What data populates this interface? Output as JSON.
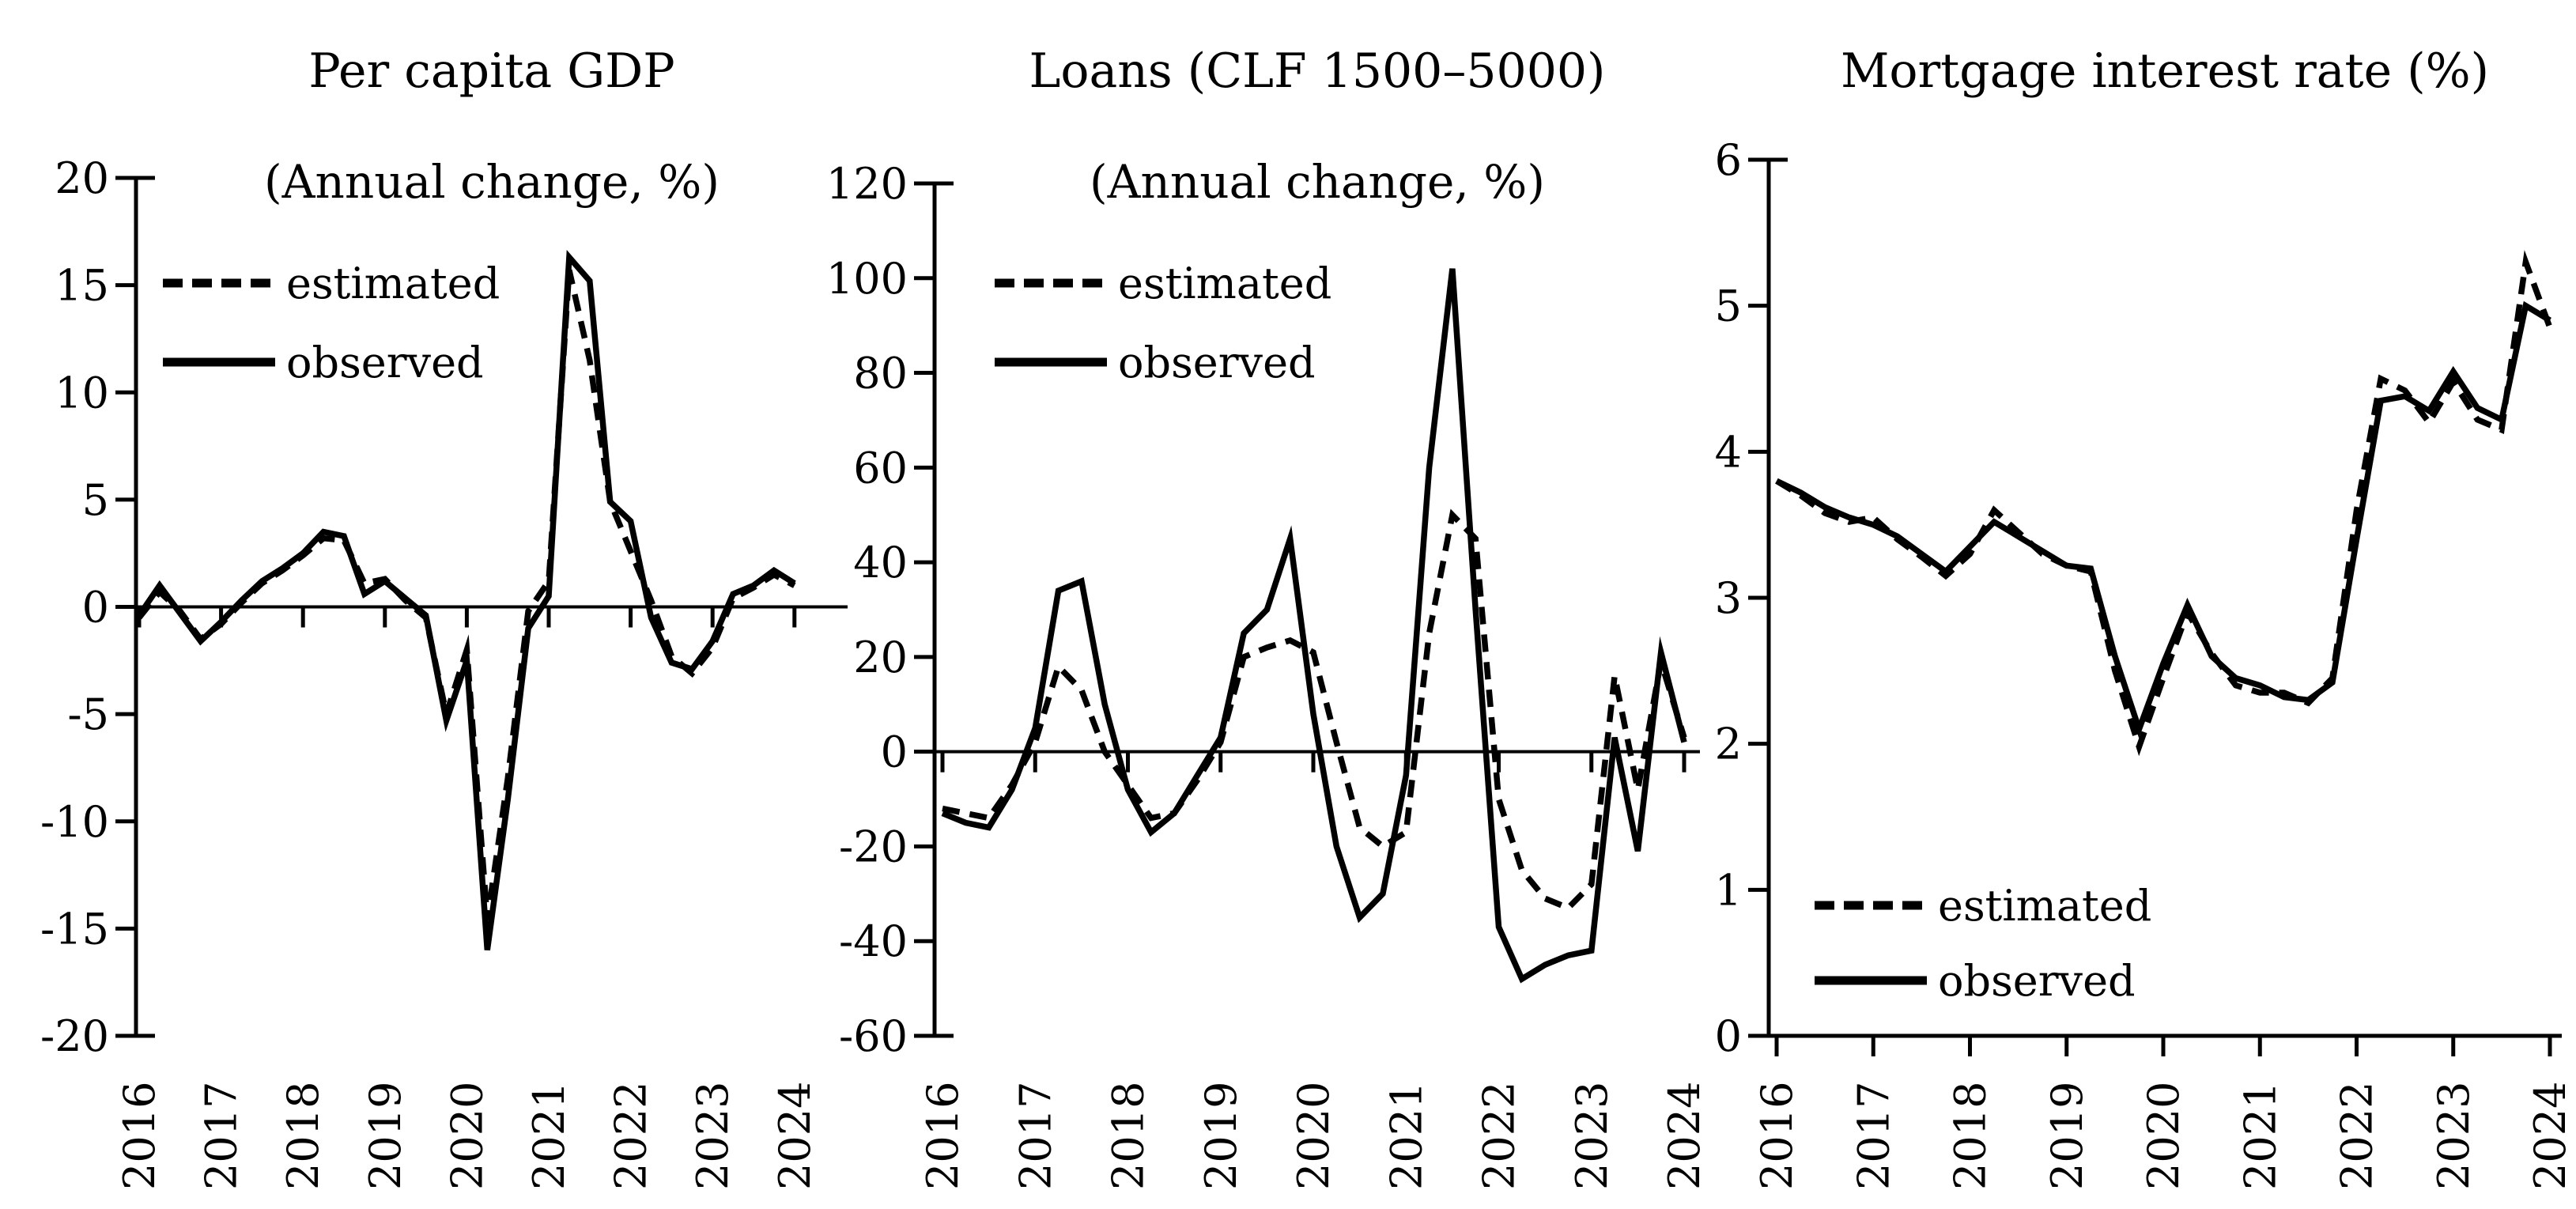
{
  "figure": {
    "background": "#ffffff",
    "ink_color": "#000000",
    "x_axis_years": [
      2016,
      2017,
      2018,
      2019,
      2020,
      2021,
      2022,
      2023,
      2024
    ],
    "x_start": 2016,
    "x_step_years": 0.25
  },
  "chart_data": [
    {
      "type": "line",
      "title": "Per capita GDP",
      "subtitle": "(Annual change, %)",
      "ylim": [
        -20,
        20
      ],
      "yticks": [
        20,
        15,
        10,
        5,
        0,
        -5,
        -10,
        -15,
        -20
      ],
      "xticks": [
        2016,
        2017,
        2018,
        2019,
        2020,
        2021,
        2022,
        2023,
        2024
      ],
      "grid": false,
      "legend_position": "top-left",
      "series": [
        {
          "id": "estimated",
          "label": "estimated",
          "line": "dashed",
          "values": [
            -0.5,
            0.7,
            -0.2,
            -1.5,
            -0.8,
            0.2,
            1.1,
            1.7,
            2.4,
            3.2,
            3.1,
            1.1,
            1.3,
            0.3,
            -0.5,
            -5.0,
            -2.0,
            -14.6,
            -8.0,
            -0.2,
            1.2,
            15.7,
            11.5,
            4.9,
            2.6,
            0.3,
            -2.3,
            -3.1,
            -1.9,
            0.4,
            0.9,
            1.5,
            1.0
          ]
        },
        {
          "id": "observed",
          "label": "observed",
          "line": "solid",
          "values": [
            -0.4,
            1.0,
            -0.3,
            -1.6,
            -0.7,
            0.3,
            1.2,
            1.8,
            2.5,
            3.5,
            3.3,
            0.6,
            1.2,
            0.4,
            -0.4,
            -5.3,
            -2.5,
            -16.0,
            -9.0,
            -1.0,
            0.5,
            16.3,
            15.2,
            4.9,
            4.0,
            -0.5,
            -2.6,
            -2.9,
            -1.6,
            0.6,
            1.0,
            1.7,
            1.1
          ]
        }
      ]
    },
    {
      "type": "line",
      "title": "Loans (CLF 1500–5000)",
      "subtitle": "(Annual change, %)",
      "ylim": [
        -60,
        120
      ],
      "yticks": [
        120,
        100,
        80,
        60,
        40,
        20,
        0,
        -20,
        -40,
        -60
      ],
      "xticks": [
        2016,
        2017,
        2018,
        2019,
        2020,
        2021,
        2022,
        2023,
        2024
      ],
      "grid": false,
      "legend_position": "top-left",
      "series": [
        {
          "id": "estimated",
          "label": "estimated",
          "line": "dashed",
          "values": [
            -12,
            -13,
            -14,
            -7,
            2,
            18,
            13,
            0,
            -7,
            -14,
            -13,
            -6,
            2,
            20,
            22,
            23.5,
            21,
            2,
            -16,
            -20,
            -17,
            25,
            50,
            45,
            -10,
            -25,
            -31,
            -33,
            -28,
            16,
            -8,
            19,
            3
          ]
        },
        {
          "id": "observed",
          "label": "observed",
          "line": "solid",
          "values": [
            -13,
            -15,
            -16,
            -8,
            5,
            34,
            36,
            10,
            -8,
            -17,
            -13,
            -5,
            3,
            25,
            30,
            45,
            8,
            -20,
            -35,
            -30,
            -5,
            60,
            102,
            30,
            -37,
            -48,
            -45,
            -43,
            -42,
            3,
            -21,
            21,
            2
          ]
        }
      ]
    },
    {
      "type": "line",
      "title": "Mortgage interest rate (%)",
      "subtitle": "",
      "ylim": [
        0,
        6
      ],
      "yticks": [
        6,
        5,
        4,
        3,
        2,
        1,
        0
      ],
      "xticks": [
        2016,
        2017,
        2018,
        2019,
        2020,
        2021,
        2022,
        2023,
        2024
      ],
      "grid": false,
      "legend_position": "bottom-left",
      "series": [
        {
          "id": "estimated",
          "label": "estimated",
          "line": "dashed",
          "values": [
            3.8,
            3.7,
            3.58,
            3.52,
            3.55,
            3.4,
            3.28,
            3.15,
            3.3,
            3.6,
            3.45,
            3.3,
            3.22,
            3.18,
            2.5,
            1.98,
            2.45,
            2.9,
            2.62,
            2.4,
            2.35,
            2.35,
            2.28,
            2.45,
            3.6,
            4.5,
            4.42,
            4.2,
            4.48,
            4.22,
            4.15,
            5.3,
            4.85
          ]
        },
        {
          "id": "observed",
          "label": "observed",
          "line": "solid",
          "values": [
            3.8,
            3.72,
            3.62,
            3.55,
            3.5,
            3.42,
            3.3,
            3.18,
            3.35,
            3.52,
            3.42,
            3.32,
            3.22,
            3.2,
            2.6,
            2.1,
            2.55,
            2.95,
            2.6,
            2.45,
            2.4,
            2.32,
            2.3,
            2.42,
            3.4,
            4.35,
            4.38,
            4.28,
            4.55,
            4.3,
            4.22,
            5.0,
            4.9
          ]
        }
      ]
    }
  ]
}
